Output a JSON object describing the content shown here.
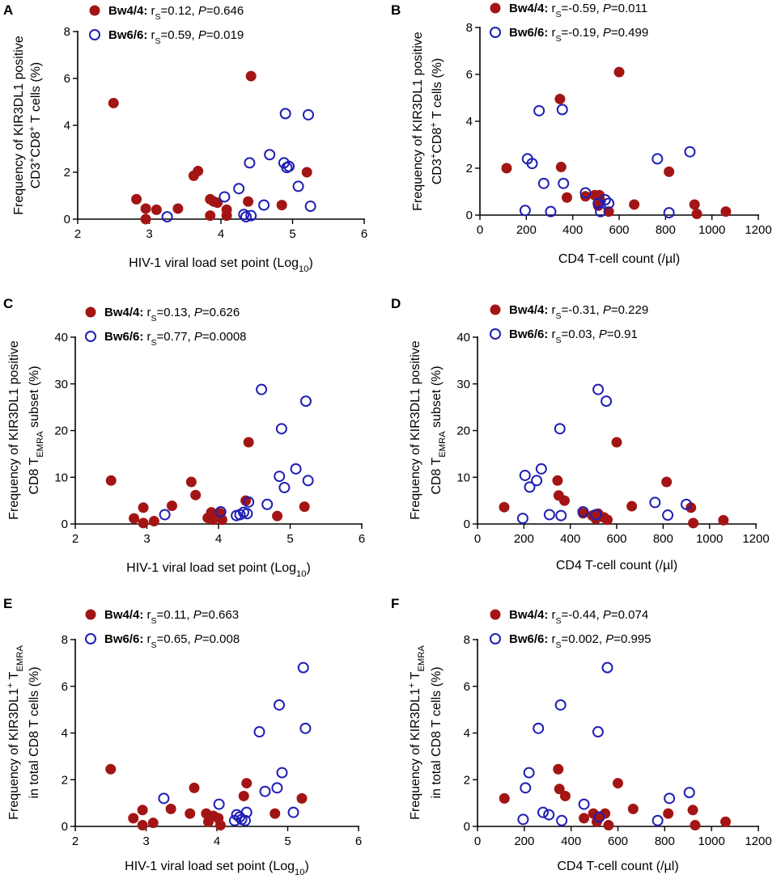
{
  "figure": {
    "bw4_color": "#a31515",
    "bw6_color": "#1f1fb4"
  },
  "chart_data": [
    {
      "panel": "A",
      "type": "scatter",
      "xlabel": "HIV-1 viral load set point (Log10)",
      "ylabel_lines": [
        "Frequency of KIR3DL1 positive",
        "CD3+CD8+ T cells (%)"
      ],
      "xlim": [
        2,
        6
      ],
      "xticks": [
        2,
        3,
        4,
        5,
        6
      ],
      "ylim": [
        0,
        8
      ],
      "yticks": [
        0,
        2,
        4,
        6,
        8
      ],
      "series": [
        {
          "name": "Bw4/4",
          "rs": "0.12",
          "P": "0.646",
          "marker": "filled",
          "x": [
            2.5,
            2.82,
            2.95,
            2.95,
            3.1,
            3.4,
            3.62,
            3.68,
            3.85,
            3.85,
            3.9,
            3.95,
            4.08,
            4.08,
            4.38,
            4.42,
            4.85,
            5.2
          ],
          "y": [
            4.95,
            0.85,
            0.45,
            0.0,
            0.4,
            0.45,
            1.85,
            2.05,
            0.85,
            0.15,
            0.75,
            0.7,
            0.4,
            0.15,
            0.75,
            6.1,
            0.6,
            2.0
          ]
        },
        {
          "name": "Bw6/6",
          "rs": "0.59",
          "P": "0.019",
          "marker": "open",
          "x": [
            3.25,
            4.05,
            4.25,
            4.32,
            4.35,
            4.4,
            4.42,
            4.6,
            4.68,
            4.88,
            4.9,
            4.92,
            4.95,
            5.08,
            5.22,
            5.25
          ],
          "y": [
            0.1,
            0.95,
            1.3,
            0.2,
            0.1,
            2.4,
            0.15,
            0.6,
            2.75,
            2.4,
            4.5,
            2.2,
            2.25,
            1.4,
            4.45,
            0.55
          ]
        }
      ]
    },
    {
      "panel": "B",
      "type": "scatter",
      "xlabel": "CD4 T-cell count (/µl)",
      "ylabel_lines": [
        "Frequency of KIR3DL1 positive",
        "CD3+CD8+ T cells (%)"
      ],
      "xlim": [
        0,
        1200
      ],
      "xticks": [
        0,
        200,
        400,
        600,
        800,
        1000,
        1200
      ],
      "ylim": [
        0,
        8
      ],
      "yticks": [
        0,
        2,
        4,
        6,
        8
      ],
      "series": [
        {
          "name": "Bw4/4",
          "rs": "-0.59",
          "P": "0.011",
          "marker": "filled",
          "x": [
            115,
            345,
            350,
            375,
            455,
            495,
            510,
            515,
            520,
            555,
            600,
            665,
            815,
            925,
            935,
            1060
          ],
          "y": [
            2.0,
            4.95,
            2.05,
            0.75,
            0.8,
            0.85,
            0.4,
            0.85,
            0.6,
            0.15,
            6.1,
            0.45,
            1.85,
            0.45,
            0.05,
            0.15
          ]
        },
        {
          "name": "Bw6/6",
          "rs": "-0.19",
          "P": "0.499",
          "marker": "open",
          "x": [
            195,
            205,
            225,
            255,
            275,
            305,
            355,
            360,
            455,
            510,
            520,
            540,
            555,
            765,
            815,
            905
          ],
          "y": [
            0.2,
            2.4,
            2.2,
            4.45,
            1.35,
            0.15,
            4.5,
            1.35,
            0.95,
            0.5,
            0.15,
            0.65,
            0.5,
            2.4,
            0.1,
            2.7
          ]
        }
      ]
    },
    {
      "panel": "C",
      "type": "scatter",
      "xlabel": "HIV-1 viral load set point (Log10)",
      "ylabel_lines": [
        "Frequency of KIR3DL1 positive",
        "CD8 TEMRA subset (%)"
      ],
      "xlim": [
        2,
        6
      ],
      "xticks": [
        2,
        3,
        4,
        5,
        6
      ],
      "ylim": [
        0,
        40
      ],
      "yticks": [
        0,
        10,
        20,
        30,
        40
      ],
      "series": [
        {
          "name": "Bw4/4",
          "rs": "0.13",
          "P": "0.626",
          "marker": "filled",
          "x": [
            2.5,
            2.82,
            2.95,
            2.95,
            3.1,
            3.35,
            3.62,
            3.68,
            3.85,
            3.9,
            3.92,
            3.95,
            4.02,
            4.05,
            4.38,
            4.42,
            4.82,
            5.2
          ],
          "y": [
            9.3,
            1.2,
            3.5,
            0.2,
            0.6,
            3.9,
            9.0,
            6.2,
            1.3,
            2.5,
            0.9,
            1.8,
            2.3,
            0.9,
            5.0,
            17.5,
            1.7,
            3.7
          ]
        },
        {
          "name": "Bw6/6",
          "rs": "0.77",
          "P": "0.0008",
          "marker": "open",
          "x": [
            3.25,
            4.03,
            4.25,
            4.3,
            4.35,
            4.4,
            4.42,
            4.6,
            4.68,
            4.85,
            4.88,
            4.92,
            5.08,
            5.22,
            5.25
          ],
          "y": [
            2.0,
            2.6,
            1.8,
            2.0,
            2.5,
            2.2,
            4.7,
            28.8,
            4.2,
            10.2,
            20.4,
            7.8,
            11.8,
            26.3,
            9.3
          ]
        }
      ]
    },
    {
      "panel": "D",
      "type": "scatter",
      "xlabel": "CD4 T-cell count (/µl)",
      "ylabel_lines": [
        "Frequency of KIR3DL1 positive",
        "CD8 TEMRA subset (%)"
      ],
      "xlim": [
        0,
        1200
      ],
      "xticks": [
        0,
        200,
        400,
        600,
        800,
        1000,
        1200
      ],
      "ylim": [
        0,
        40
      ],
      "yticks": [
        0,
        10,
        20,
        30,
        40
      ],
      "series": [
        {
          "name": "Bw4/4",
          "rs": "-0.31",
          "P": "0.229",
          "marker": "filled",
          "x": [
            115,
            345,
            350,
            375,
            455,
            495,
            510,
            520,
            545,
            560,
            600,
            665,
            815,
            920,
            930,
            1060
          ],
          "y": [
            3.6,
            9.3,
            6.1,
            5.0,
            2.3,
            1.8,
            1.1,
            2.2,
            1.4,
            0.9,
            17.5,
            3.8,
            9.0,
            3.5,
            0.2,
            0.8
          ]
        },
        {
          "name": "Bw6/6",
          "rs": "0.03",
          "P": "0.91",
          "marker": "open",
          "x": [
            195,
            205,
            225,
            255,
            275,
            310,
            355,
            360,
            455,
            510,
            520,
            555,
            765,
            820,
            900
          ],
          "y": [
            1.2,
            10.4,
            7.9,
            9.3,
            11.8,
            2.0,
            20.4,
            1.8,
            2.6,
            2.0,
            28.8,
            26.3,
            4.6,
            1.9,
            4.2
          ]
        }
      ]
    },
    {
      "panel": "E",
      "type": "scatter",
      "xlabel": "HIV-1 viral load set point (Log10)",
      "ylabel_lines": [
        "Frequency of KIR3DL1+ TEMRA",
        "in total CD8 T cells (%)"
      ],
      "xlim": [
        2,
        6
      ],
      "xticks": [
        2,
        3,
        4,
        5,
        6
      ],
      "ylim": [
        0,
        8
      ],
      "yticks": [
        0,
        2,
        4,
        6,
        8
      ],
      "series": [
        {
          "name": "Bw4/4",
          "rs": "0.11",
          "P": "0.663",
          "marker": "filled",
          "x": [
            2.5,
            2.82,
            2.95,
            2.95,
            3.1,
            3.35,
            3.62,
            3.68,
            3.85,
            3.88,
            3.95,
            4.02,
            4.05,
            4.38,
            4.42,
            4.82,
            5.2
          ],
          "y": [
            2.45,
            0.35,
            0.7,
            0.05,
            0.15,
            0.75,
            0.55,
            1.65,
            0.55,
            0.2,
            0.45,
            0.35,
            0.05,
            1.3,
            1.85,
            0.55,
            1.2
          ]
        },
        {
          "name": "Bw6/6",
          "rs": "0.65",
          "P": "0.008",
          "marker": "open",
          "x": [
            3.25,
            4.03,
            4.25,
            4.28,
            4.32,
            4.35,
            4.4,
            4.42,
            4.6,
            4.68,
            4.85,
            4.88,
            4.92,
            5.08,
            5.22,
            5.25
          ],
          "y": [
            1.2,
            0.95,
            0.25,
            0.5,
            0.4,
            0.3,
            0.25,
            0.6,
            4.05,
            1.5,
            1.65,
            5.2,
            2.3,
            0.6,
            6.8,
            4.2
          ]
        }
      ]
    },
    {
      "panel": "F",
      "type": "scatter",
      "xlabel": "CD4 T-cell count (/µl)",
      "ylabel_lines": [
        "Frequency of KIR3DL1+ TEMRA",
        "in total CD8 T cells (%)"
      ],
      "xlim": [
        0,
        1200
      ],
      "xticks": [
        0,
        200,
        400,
        600,
        800,
        1000,
        1200
      ],
      "ylim": [
        0,
        8
      ],
      "yticks": [
        0,
        2,
        4,
        6,
        8
      ],
      "series": [
        {
          "name": "Bw4/4",
          "rs": "-0.44",
          "P": "0.074",
          "marker": "filled",
          "x": [
            115,
            345,
            350,
            375,
            455,
            495,
            510,
            520,
            545,
            560,
            600,
            665,
            815,
            920,
            930,
            1060
          ],
          "y": [
            1.2,
            2.45,
            1.6,
            1.3,
            0.35,
            0.55,
            0.2,
            0.4,
            0.55,
            0.05,
            1.85,
            0.75,
            0.55,
            0.7,
            0.05,
            0.2
          ]
        },
        {
          "name": "Bw6/6",
          "rs": "0.002",
          "P": "0.995",
          "marker": "open",
          "x": [
            195,
            205,
            220,
            260,
            280,
            305,
            355,
            360,
            455,
            515,
            520,
            555,
            770,
            820,
            905
          ],
          "y": [
            0.3,
            1.65,
            2.3,
            4.2,
            0.6,
            0.5,
            5.2,
            0.25,
            0.95,
            4.05,
            0.4,
            6.8,
            0.25,
            1.2,
            1.45
          ]
        }
      ]
    }
  ]
}
